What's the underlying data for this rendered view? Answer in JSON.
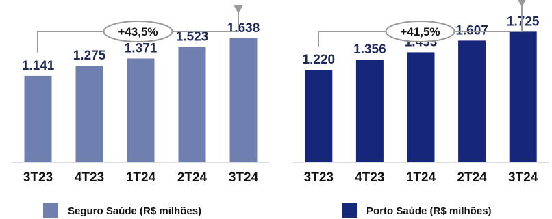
{
  "chart_data": [
    {
      "type": "bar",
      "categories": [
        "3T23",
        "4T23",
        "1T24",
        "2T24",
        "3T24"
      ],
      "values": [
        1141,
        1275,
        1371,
        1523,
        1638
      ],
      "value_labels": [
        "1.141",
        "1.275",
        "1.371",
        "1.523",
        "1.638"
      ],
      "growth_label": "+43,5%",
      "legend": "Seguro Saúde (R$ milhões)",
      "color": "#6f7fb0",
      "ylim": [
        0,
        1900
      ],
      "grid": false,
      "legend_position": "bottom"
    },
    {
      "type": "bar",
      "categories": [
        "3T23",
        "4T23",
        "1T24",
        "2T24",
        "3T24"
      ],
      "values": [
        1220,
        1356,
        1453,
        1607,
        1725
      ],
      "value_labels": [
        "1.220",
        "1.356",
        "1.453",
        "1.607",
        "1.725"
      ],
      "growth_label": "+41,5%",
      "legend": "Porto Saúde (R$ milhões)",
      "color": "#16267a",
      "ylim": [
        0,
        1900
      ],
      "grid": false,
      "legend_position": "bottom"
    }
  ],
  "colors": {
    "label": "#1f2a5c",
    "bracket": "#9a9a9a",
    "axis": "#bdbdbd"
  }
}
